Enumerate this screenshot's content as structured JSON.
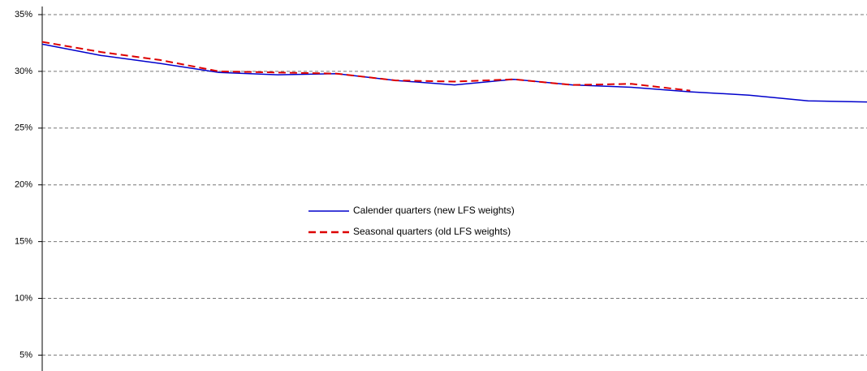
{
  "chart_data": {
    "type": "line",
    "categories": [
      null,
      null,
      null,
      null,
      null,
      null,
      null,
      null,
      null,
      null,
      null,
      null,
      null,
      null,
      null
    ],
    "series": [
      {
        "name": "Calender quarters (new LFS weights)",
        "color": "#0000cc",
        "dash": false,
        "values": [
          32.4,
          31.4,
          30.7,
          29.9,
          29.7,
          29.8,
          29.2,
          28.8,
          29.3,
          28.8,
          28.6,
          28.2,
          27.9,
          27.4,
          27.3
        ]
      },
      {
        "name": "Seasonal quarters (old LFS weights)",
        "color": "#dd0000",
        "dash": true,
        "values": [
          32.6,
          31.7,
          31.0,
          30.0,
          29.9,
          29.8,
          29.2,
          29.1,
          29.3,
          28.8,
          28.9,
          28.3,
          null,
          null,
          null
        ]
      }
    ],
    "ylim": [
      3.6,
      35
    ],
    "yticks": [
      {
        "value": 5,
        "label": "5%"
      },
      {
        "value": 10,
        "label": "10%"
      },
      {
        "value": 15,
        "label": "15%"
      },
      {
        "value": 20,
        "label": "20%"
      },
      {
        "value": 25,
        "label": "25%"
      },
      {
        "value": 30,
        "label": "30%"
      },
      {
        "value": 35,
        "label": "35%"
      }
    ],
    "grid": true,
    "legend": "center"
  }
}
